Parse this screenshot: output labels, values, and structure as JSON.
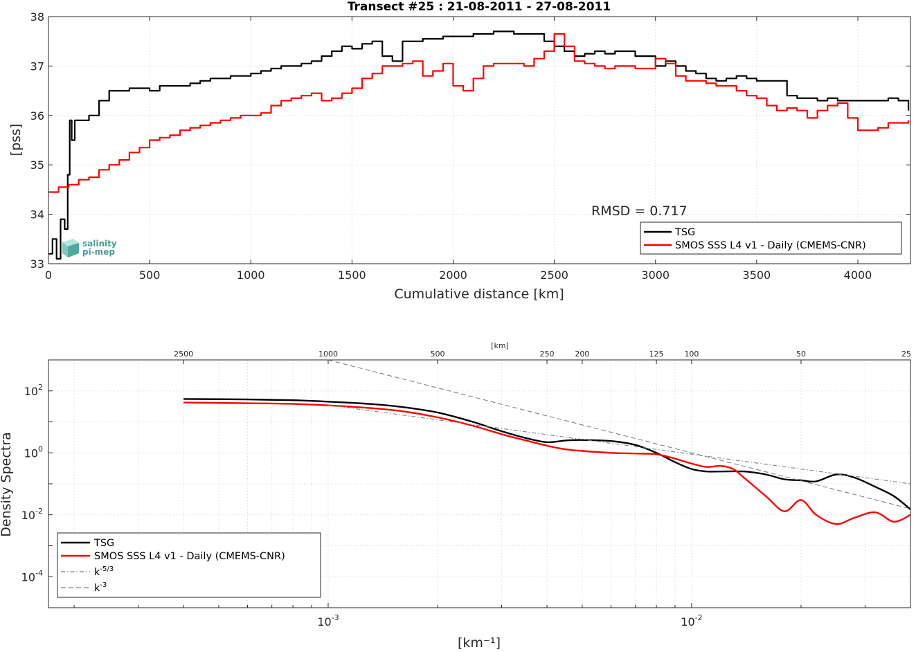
{
  "chart_data": [
    {
      "type": "line",
      "title": "Transect #25 : 21-08-2011 - 27-08-2011",
      "xlabel": "Cumulative distance [km]",
      "ylabel": "[pss]",
      "xlim": [
        0,
        4260
      ],
      "ylim": [
        33,
        38
      ],
      "xticks": [
        "0",
        "500",
        "1000",
        "1500",
        "2000",
        "2500",
        "3000",
        "3500",
        "4000"
      ],
      "yticks": [
        "33",
        "34",
        "35",
        "36",
        "37",
        "38"
      ],
      "grid": true,
      "legend_position": "bottom-right",
      "annotation": "RMSD = 0.717",
      "logo": {
        "line1": "salinity",
        "line2": "pi-mep"
      },
      "series": [
        {
          "name": "TSG",
          "color": "#000000",
          "x": [
            0,
            20,
            40,
            60,
            80,
            95,
            105,
            115,
            130,
            160,
            200,
            250,
            300,
            350,
            400,
            450,
            500,
            550,
            600,
            650,
            700,
            750,
            800,
            850,
            900,
            950,
            1000,
            1050,
            1100,
            1150,
            1200,
            1250,
            1300,
            1350,
            1400,
            1450,
            1500,
            1550,
            1600,
            1650,
            1700,
            1750,
            1800,
            1850,
            1900,
            1950,
            2000,
            2100,
            2200,
            2300,
            2400,
            2450,
            2500,
            2550,
            2600,
            2650,
            2700,
            2750,
            2800,
            2850,
            2900,
            2950,
            3000,
            3050,
            3100,
            3150,
            3200,
            3250,
            3300,
            3350,
            3400,
            3450,
            3500,
            3550,
            3600,
            3650,
            3700,
            3750,
            3800,
            3850,
            3900,
            3950,
            4000,
            4050,
            4100,
            4150,
            4200,
            4250
          ],
          "y": [
            33.2,
            33.5,
            33.1,
            33.9,
            33.7,
            34.8,
            35.9,
            35.5,
            35.9,
            35.9,
            36.0,
            36.3,
            36.5,
            36.5,
            36.55,
            36.55,
            36.5,
            36.6,
            36.6,
            36.6,
            36.65,
            36.7,
            36.75,
            36.75,
            36.8,
            36.8,
            36.85,
            36.9,
            36.95,
            37.0,
            37.0,
            37.05,
            37.1,
            37.2,
            37.3,
            37.4,
            37.35,
            37.45,
            37.5,
            37.2,
            37.1,
            37.5,
            37.5,
            37.55,
            37.55,
            37.6,
            37.6,
            37.65,
            37.7,
            37.65,
            37.65,
            37.5,
            37.4,
            37.3,
            37.2,
            37.25,
            37.3,
            37.25,
            37.3,
            37.3,
            37.2,
            37.2,
            37.0,
            37.1,
            37.0,
            36.9,
            36.85,
            36.75,
            36.7,
            36.75,
            36.8,
            36.75,
            36.7,
            36.7,
            36.7,
            36.4,
            36.35,
            36.35,
            36.3,
            36.35,
            36.3,
            36.3,
            36.3,
            36.3,
            36.3,
            36.35,
            36.3,
            36.1
          ]
        },
        {
          "name": "SMOS SSS L4 v1 - Daily (CMEMS-CNR)",
          "color": "#ff0000",
          "x": [
            0,
            50,
            100,
            150,
            200,
            250,
            300,
            350,
            400,
            450,
            500,
            550,
            600,
            650,
            700,
            750,
            800,
            850,
            900,
            950,
            1000,
            1050,
            1100,
            1150,
            1200,
            1250,
            1300,
            1350,
            1400,
            1450,
            1500,
            1550,
            1600,
            1650,
            1700,
            1750,
            1800,
            1850,
            1900,
            1950,
            2000,
            2050,
            2100,
            2150,
            2200,
            2250,
            2300,
            2350,
            2400,
            2450,
            2500,
            2550,
            2600,
            2650,
            2700,
            2750,
            2800,
            2850,
            2900,
            2950,
            3000,
            3050,
            3100,
            3150,
            3200,
            3250,
            3300,
            3350,
            3400,
            3450,
            3500,
            3550,
            3600,
            3650,
            3700,
            3750,
            3800,
            3850,
            3900,
            3950,
            4000,
            4050,
            4100,
            4150,
            4200,
            4250
          ],
          "y": [
            34.45,
            34.55,
            34.6,
            34.7,
            34.75,
            34.9,
            35.0,
            35.1,
            35.25,
            35.35,
            35.5,
            35.55,
            35.6,
            35.7,
            35.75,
            35.8,
            35.85,
            35.9,
            35.95,
            36.0,
            36.0,
            36.05,
            36.2,
            36.3,
            36.35,
            36.4,
            36.45,
            36.3,
            36.35,
            36.45,
            36.55,
            36.75,
            36.85,
            37.0,
            37.0,
            37.05,
            37.1,
            36.8,
            36.9,
            37.05,
            36.6,
            36.5,
            36.75,
            37.0,
            37.05,
            37.05,
            37.05,
            37.0,
            37.15,
            37.3,
            37.65,
            37.4,
            37.1,
            37.05,
            37.0,
            36.95,
            37.0,
            37.0,
            36.95,
            36.95,
            37.15,
            37.05,
            36.8,
            36.7,
            36.7,
            36.65,
            36.6,
            36.6,
            36.5,
            36.4,
            36.35,
            36.2,
            36.1,
            36.15,
            36.1,
            35.95,
            36.1,
            36.2,
            36.25,
            35.95,
            35.7,
            35.7,
            35.75,
            35.85,
            35.85,
            35.9
          ]
        }
      ]
    },
    {
      "type": "line",
      "xlabel": "[km⁻¹]",
      "ylabel": "Density Spectra",
      "xscale": "log",
      "yscale": "log",
      "xlim": [
        0.00017,
        0.04
      ],
      "ylim": [
        1e-05,
        1000
      ],
      "xticks": [
        {
          "base": "10",
          "exp": "-3"
        },
        {
          "base": "10",
          "exp": "-2"
        }
      ],
      "yticks": [
        {
          "base": "10",
          "exp": "2"
        },
        {
          "base": "10",
          "exp": "0"
        },
        {
          "base": "10",
          "exp": "-2"
        },
        {
          "base": "10",
          "exp": "-4"
        }
      ],
      "top_axis_label": "[km]",
      "top_ticks": [
        "2500",
        "1000",
        "500",
        "250",
        "200",
        "125",
        "100",
        "50",
        "25"
      ],
      "grid": true,
      "legend_position": "bottom-left",
      "series": [
        {
          "name": "TSG",
          "color": "#000000",
          "x": [
            0.0004,
            0.0006,
            0.0008,
            0.001,
            0.0013,
            0.0016,
            0.002,
            0.0025,
            0.003,
            0.0035,
            0.004,
            0.0045,
            0.005,
            0.006,
            0.007,
            0.008,
            0.009,
            0.01,
            0.011,
            0.012,
            0.014,
            0.016,
            0.018,
            0.02,
            0.022,
            0.025,
            0.028,
            0.032,
            0.036,
            0.04
          ],
          "y": [
            55,
            53,
            50,
            45,
            38,
            30,
            20,
            10,
            5,
            3,
            2.2,
            2.5,
            2.6,
            2.4,
            1.8,
            1.0,
            0.5,
            0.3,
            0.25,
            0.25,
            0.25,
            0.2,
            0.14,
            0.13,
            0.12,
            0.2,
            0.16,
            0.08,
            0.04,
            0.015
          ]
        },
        {
          "name": "SMOS SSS L4 v1 - Daily (CMEMS-CNR)",
          "color": "#ff0000",
          "x": [
            0.0004,
            0.0006,
            0.0008,
            0.001,
            0.0013,
            0.0016,
            0.002,
            0.0025,
            0.003,
            0.0035,
            0.004,
            0.0045,
            0.005,
            0.006,
            0.007,
            0.008,
            0.009,
            0.01,
            0.011,
            0.012,
            0.013,
            0.014,
            0.016,
            0.018,
            0.02,
            0.022,
            0.025,
            0.028,
            0.032,
            0.036,
            0.04
          ],
          "y": [
            42,
            40,
            38,
            34,
            28,
            22,
            14,
            7.5,
            4.0,
            2.5,
            1.7,
            1.3,
            1.15,
            1.0,
            0.95,
            0.9,
            0.65,
            0.45,
            0.35,
            0.38,
            0.3,
            0.15,
            0.04,
            0.013,
            0.03,
            0.01,
            0.005,
            0.008,
            0.012,
            0.006,
            0.01
          ]
        },
        {
          "name": "k⁻⁵ᐟ³",
          "color": "#808080",
          "x": [
            0.001,
            0.04
          ],
          "y": [
            35,
            0.1
          ]
        },
        {
          "name": "k⁻³",
          "color": "#808080",
          "x": [
            0.001,
            0.04
          ],
          "y": [
            1000,
            0.0156
          ]
        }
      ],
      "legend_entries": [
        {
          "label": "TSG"
        },
        {
          "label": "SMOS SSS L4 v1 - Daily (CMEMS-CNR)"
        },
        {
          "base": "k",
          "exp": "-5/3"
        },
        {
          "base": "k",
          "exp": "-3"
        }
      ]
    }
  ]
}
